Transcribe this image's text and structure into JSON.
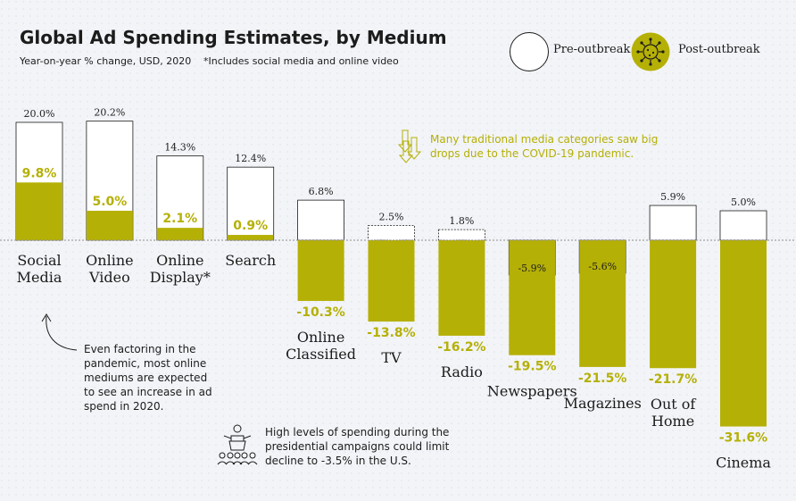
{
  "header": {
    "title": "Global Ad Spending Estimates, by Medium",
    "subtitle": "Year-on-year % change, USD, 2020",
    "footnote": "*Includes social media and online video"
  },
  "legend": {
    "pre_label": "Pre-outbreak",
    "post_label": "Post-outbreak",
    "pre_icon": "empty-circle-icon",
    "post_icon": "virus-circle-icon"
  },
  "notes": {
    "online_lines": [
      "Even factoring in the",
      "pandemic, most online",
      "mediums are expected",
      "to see an increase in ad",
      "spend in 2020."
    ],
    "traditional_lines": [
      "Many traditional media categories saw big",
      "drops due to the COVID-19 pandemic."
    ],
    "election_lines": [
      "High levels of spending during the",
      "presidential campaigns could limit",
      "decline to -3.5% in the U.S."
    ]
  },
  "colors": {
    "post": "#b5b006",
    "post_text": "#b5b006",
    "pre_fill": "#ffffff",
    "pre_stroke": "#1c1c1c",
    "background": "#f2f4f7"
  },
  "chart_data": {
    "type": "bar",
    "title": "Global Ad Spending Estimates, by Medium",
    "subtitle": "Year-on-year % change, USD, 2020",
    "ylabel": "",
    "xlabel": "",
    "categories": [
      [
        "Social",
        "Media"
      ],
      [
        "Online",
        "Video"
      ],
      [
        "Online",
        "Display*"
      ],
      [
        "Search"
      ],
      [
        "Online",
        "Classified"
      ],
      [
        "TV"
      ],
      [
        "Radio"
      ],
      [
        "Newspapers"
      ],
      [
        "Magazines"
      ],
      [
        "Out of",
        "Home"
      ],
      [
        "Cinema"
      ]
    ],
    "series": [
      {
        "name": "Pre-outbreak",
        "values": [
          20.0,
          20.2,
          14.3,
          12.4,
          6.8,
          2.5,
          1.8,
          -5.9,
          -5.6,
          5.9,
          5.0
        ],
        "labels": [
          "20.0%",
          "20.2%",
          "14.3%",
          "12.4%",
          "6.8%",
          "2.5%",
          "1.8%",
          "-5.9%",
          "-5.6%",
          "5.9%",
          "5.0%"
        ]
      },
      {
        "name": "Post-outbreak",
        "values": [
          9.8,
          5.0,
          2.1,
          0.9,
          -10.3,
          -13.8,
          -16.2,
          -19.5,
          -21.5,
          -21.7,
          -31.6
        ],
        "labels": [
          "9.8%",
          "5.0%",
          "2.1%",
          "0.9%",
          "-10.3%",
          "-13.8%",
          "-16.2%",
          "-19.5%",
          "-21.5%",
          "-21.7%",
          "-31.6%"
        ]
      }
    ],
    "ylim": [
      -31.6,
      20.2
    ],
    "grid": false,
    "legend_position": "top-right"
  }
}
